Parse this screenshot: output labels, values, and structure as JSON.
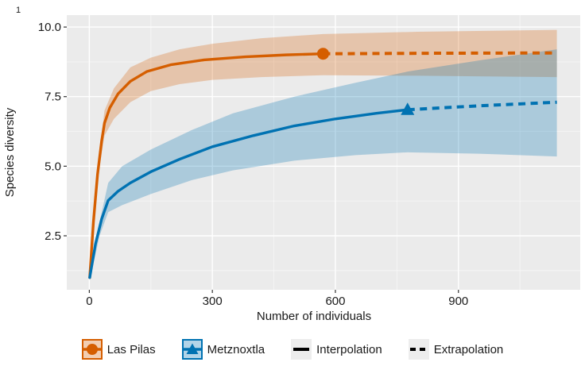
{
  "tag": "1",
  "chart_data": {
    "type": "line",
    "title": "",
    "xlabel": "Number of individuals",
    "ylabel": "Species diversity",
    "xlim": [
      -55,
      1197
    ],
    "ylim": [
      0.56,
      10.43
    ],
    "x_ticks": [
      0,
      300,
      600,
      900
    ],
    "x_tick_labels": [
      "0",
      "300",
      "600",
      "900"
    ],
    "x_minor_ticks": [
      150,
      450,
      750,
      1050
    ],
    "y_ticks": [
      2.5,
      5.0,
      7.5,
      10.0
    ],
    "y_tick_labels": [
      "2.5",
      "5.0",
      "7.5",
      "10.0"
    ],
    "y_minor_ticks": [
      1.25,
      3.75,
      6.25,
      8.75
    ],
    "grid": true,
    "plot_background": "#EBEBEB",
    "grid_major_color": "#FFFFFF",
    "ribbon_opacity": 0.27,
    "legend_position": "bottom",
    "series": [
      {
        "name": "Las Pilas",
        "color": "#D55E00",
        "marker": "circle",
        "observed_point": [
          570,
          9.04
        ],
        "interpolation": [
          [
            1,
            1
          ],
          [
            10,
            3.0
          ],
          [
            20,
            4.7
          ],
          [
            30,
            5.9
          ],
          [
            37,
            6.55
          ],
          [
            50,
            7.1
          ],
          [
            70,
            7.6
          ],
          [
            100,
            8.05
          ],
          [
            140,
            8.4
          ],
          [
            200,
            8.65
          ],
          [
            280,
            8.82
          ],
          [
            380,
            8.93
          ],
          [
            480,
            9.0
          ],
          [
            570,
            9.04
          ]
        ],
        "extrapolation": [
          [
            570,
            9.04
          ],
          [
            850,
            9.06
          ],
          [
            1140,
            9.07
          ]
        ],
        "ribbon": {
          "x": [
            1,
            20,
            37,
            60,
            100,
            150,
            220,
            300,
            420,
            570,
            800,
            1140
          ],
          "upper": [
            1.05,
            4.9,
            7.0,
            7.8,
            8.55,
            8.9,
            9.2,
            9.4,
            9.6,
            9.75,
            9.83,
            9.9
          ],
          "lower": [
            0.95,
            4.5,
            6.1,
            6.7,
            7.3,
            7.7,
            7.95,
            8.1,
            8.2,
            8.27,
            8.25,
            8.2
          ]
        }
      },
      {
        "name": "Metznoxtla",
        "color": "#0072B2",
        "marker": "triangle",
        "observed_point": [
          776,
          7.03
        ],
        "interpolation": [
          [
            1,
            1
          ],
          [
            15,
            2.2
          ],
          [
            30,
            3.1
          ],
          [
            46,
            3.77
          ],
          [
            70,
            4.1
          ],
          [
            100,
            4.4
          ],
          [
            150,
            4.8
          ],
          [
            220,
            5.25
          ],
          [
            300,
            5.7
          ],
          [
            400,
            6.1
          ],
          [
            500,
            6.45
          ],
          [
            600,
            6.7
          ],
          [
            700,
            6.9
          ],
          [
            776,
            7.03
          ]
        ],
        "extrapolation": [
          [
            776,
            7.03
          ],
          [
            950,
            7.17
          ],
          [
            1140,
            7.3
          ]
        ],
        "ribbon": {
          "x": [
            1,
            25,
            46,
            80,
            150,
            250,
            350,
            500,
            650,
            776,
            950,
            1140
          ],
          "upper": [
            1.1,
            3.0,
            4.4,
            5.0,
            5.6,
            6.3,
            6.9,
            7.5,
            8.0,
            8.4,
            8.8,
            9.2
          ],
          "lower": [
            0.9,
            2.5,
            3.35,
            3.6,
            4.0,
            4.5,
            4.85,
            5.2,
            5.4,
            5.5,
            5.45,
            5.35
          ]
        }
      }
    ]
  },
  "legend": {
    "items": [
      {
        "label": "Las Pilas",
        "key": "ribbon-point-circle",
        "color": "#D55E00"
      },
      {
        "label": "Metznoxtla",
        "key": "ribbon-point-triangle",
        "color": "#0072B2"
      },
      {
        "label": "Interpolation",
        "key": "solid-line",
        "color": "#000000"
      },
      {
        "label": "Extrapolation",
        "key": "dashed-line",
        "color": "#000000"
      }
    ]
  }
}
